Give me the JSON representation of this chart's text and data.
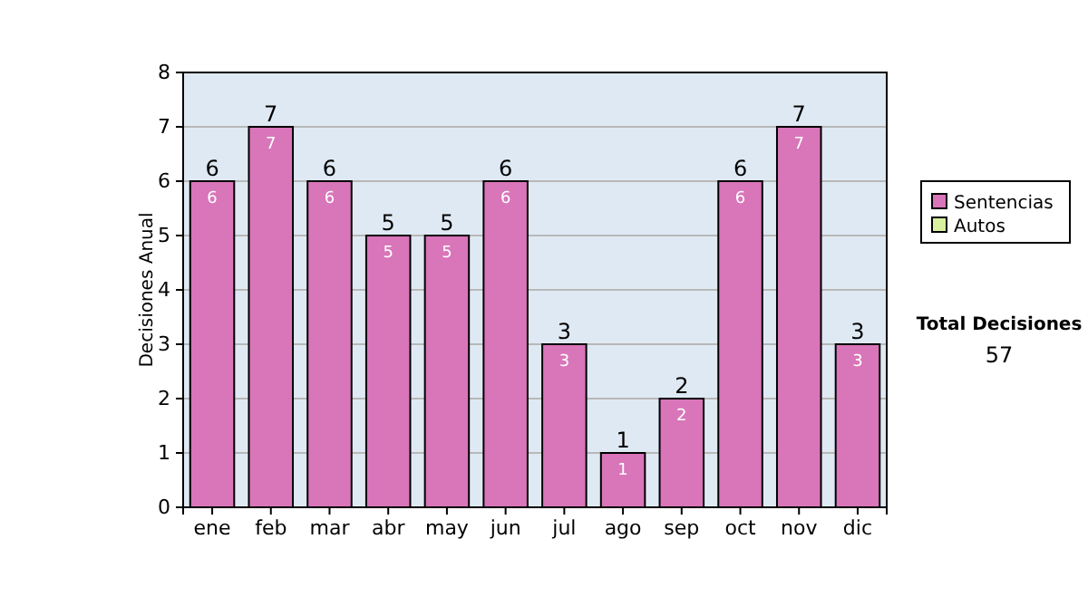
{
  "chart_data": {
    "type": "bar",
    "ylabel": "Decisiones Anual",
    "categories": [
      "ene",
      "feb",
      "mar",
      "abr",
      "may",
      "jun",
      "jul",
      "ago",
      "sep",
      "oct",
      "nov",
      "dic"
    ],
    "series": [
      {
        "name": "Sentencias",
        "color": "#d975b9",
        "values": [
          6,
          7,
          6,
          5,
          5,
          6,
          3,
          1,
          2,
          6,
          7,
          3
        ],
        "value_labels": [
          "6",
          "7",
          "6",
          "5",
          "5",
          "6",
          "3",
          "1",
          "2",
          "6",
          "7",
          "3"
        ]
      },
      {
        "name": "Autos",
        "color": "#d9f0a0",
        "values": [
          0,
          0,
          0,
          0,
          0,
          0,
          0,
          0,
          0,
          0,
          0,
          0
        ],
        "value_labels": [
          null,
          null,
          null,
          null,
          null,
          null,
          null,
          null,
          null,
          null,
          null,
          null
        ]
      }
    ],
    "stacked": true,
    "totals": [
      "6",
      "7",
      "6",
      "5",
      "5",
      "6",
      "3",
      "1",
      "2",
      "6",
      "7",
      "3"
    ],
    "ylim": [
      0,
      8
    ],
    "yticks": [
      0,
      1,
      2,
      3,
      4,
      5,
      6,
      7,
      8
    ],
    "grid": "y",
    "legend": "right",
    "annotations": [
      "Total Decisiones",
      "57"
    ]
  }
}
